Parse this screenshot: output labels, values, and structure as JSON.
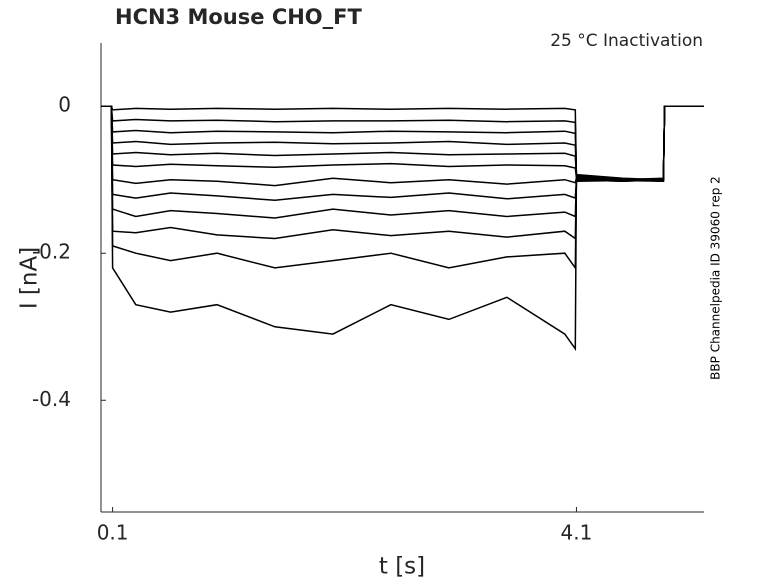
{
  "chart_data": {
    "type": "line",
    "title": "HCN3  Mouse  CHO_FT",
    "annotation": "25 °C  Inactivation",
    "side_note": "BBP Channelpedia ID 39060 rep 2",
    "x_label": "t [s]",
    "y_label": "I [nA]",
    "color": "#000000",
    "xlim": [
      0,
      5.2
    ],
    "ylim": [
      -0.552,
      0.086
    ],
    "xticks": [
      0.1,
      4.1
    ],
    "yticks": [
      0,
      -0.2,
      -0.4
    ],
    "x": [
      0.0,
      0.09,
      0.1,
      0.3,
      0.6,
      1.0,
      1.5,
      2.0,
      2.5,
      3.0,
      3.5,
      4.0,
      4.09,
      4.1,
      4.5,
      4.85,
      4.86,
      5.2
    ],
    "series": [
      {
        "values": [
          0,
          0,
          -0.005,
          -0.003,
          -0.004,
          -0.003,
          -0.004,
          -0.003,
          -0.004,
          -0.003,
          -0.004,
          -0.003,
          -0.005,
          -0.095,
          -0.1,
          -0.1,
          0,
          0
        ]
      },
      {
        "values": [
          0,
          0,
          -0.02,
          -0.018,
          -0.02,
          -0.019,
          -0.021,
          -0.02,
          -0.02,
          -0.019,
          -0.021,
          -0.02,
          -0.022,
          -0.095,
          -0.1,
          -0.098,
          0,
          0
        ]
      },
      {
        "values": [
          0,
          0,
          -0.035,
          -0.033,
          -0.036,
          -0.034,
          -0.035,
          -0.036,
          -0.034,
          -0.035,
          -0.036,
          -0.034,
          -0.037,
          -0.093,
          -0.098,
          -0.1,
          0,
          0
        ]
      },
      {
        "values": [
          0,
          0,
          -0.05,
          -0.048,
          -0.052,
          -0.05,
          -0.049,
          -0.051,
          -0.05,
          -0.048,
          -0.052,
          -0.05,
          -0.053,
          -0.094,
          -0.099,
          -0.1,
          0,
          0
        ]
      },
      {
        "values": [
          0,
          0,
          -0.065,
          -0.063,
          -0.066,
          -0.064,
          -0.067,
          -0.065,
          -0.063,
          -0.066,
          -0.065,
          -0.064,
          -0.068,
          -0.096,
          -0.1,
          -0.101,
          0,
          0
        ]
      },
      {
        "values": [
          0,
          0,
          -0.08,
          -0.082,
          -0.079,
          -0.081,
          -0.083,
          -0.08,
          -0.078,
          -0.082,
          -0.08,
          -0.081,
          -0.084,
          -0.097,
          -0.101,
          -0.1,
          0,
          0
        ]
      },
      {
        "values": [
          0,
          0,
          -0.1,
          -0.105,
          -0.1,
          -0.102,
          -0.108,
          -0.098,
          -0.104,
          -0.1,
          -0.106,
          -0.1,
          -0.104,
          -0.098,
          -0.1,
          -0.102,
          0,
          0
        ]
      },
      {
        "values": [
          0,
          0,
          -0.12,
          -0.125,
          -0.118,
          -0.122,
          -0.128,
          -0.12,
          -0.124,
          -0.118,
          -0.126,
          -0.12,
          -0.125,
          -0.1,
          -0.102,
          -0.1,
          0,
          0
        ]
      },
      {
        "values": [
          0,
          0,
          -0.14,
          -0.15,
          -0.142,
          -0.146,
          -0.152,
          -0.14,
          -0.148,
          -0.142,
          -0.15,
          -0.144,
          -0.15,
          -0.101,
          -0.1,
          -0.099,
          0,
          0
        ]
      },
      {
        "values": [
          0,
          0,
          -0.17,
          -0.172,
          -0.165,
          -0.175,
          -0.18,
          -0.168,
          -0.176,
          -0.17,
          -0.178,
          -0.17,
          -0.18,
          -0.102,
          -0.101,
          -0.1,
          0,
          0
        ]
      },
      {
        "values": [
          0,
          0,
          -0.19,
          -0.2,
          -0.21,
          -0.2,
          -0.22,
          -0.21,
          -0.2,
          -0.22,
          -0.205,
          -0.2,
          -0.22,
          -0.1,
          -0.102,
          -0.1,
          0,
          0
        ]
      },
      {
        "values": [
          0,
          0,
          -0.22,
          -0.27,
          -0.28,
          -0.27,
          -0.3,
          -0.31,
          -0.27,
          -0.29,
          -0.26,
          -0.31,
          -0.33,
          -0.1,
          -0.101,
          -0.102,
          0,
          0
        ]
      }
    ]
  }
}
